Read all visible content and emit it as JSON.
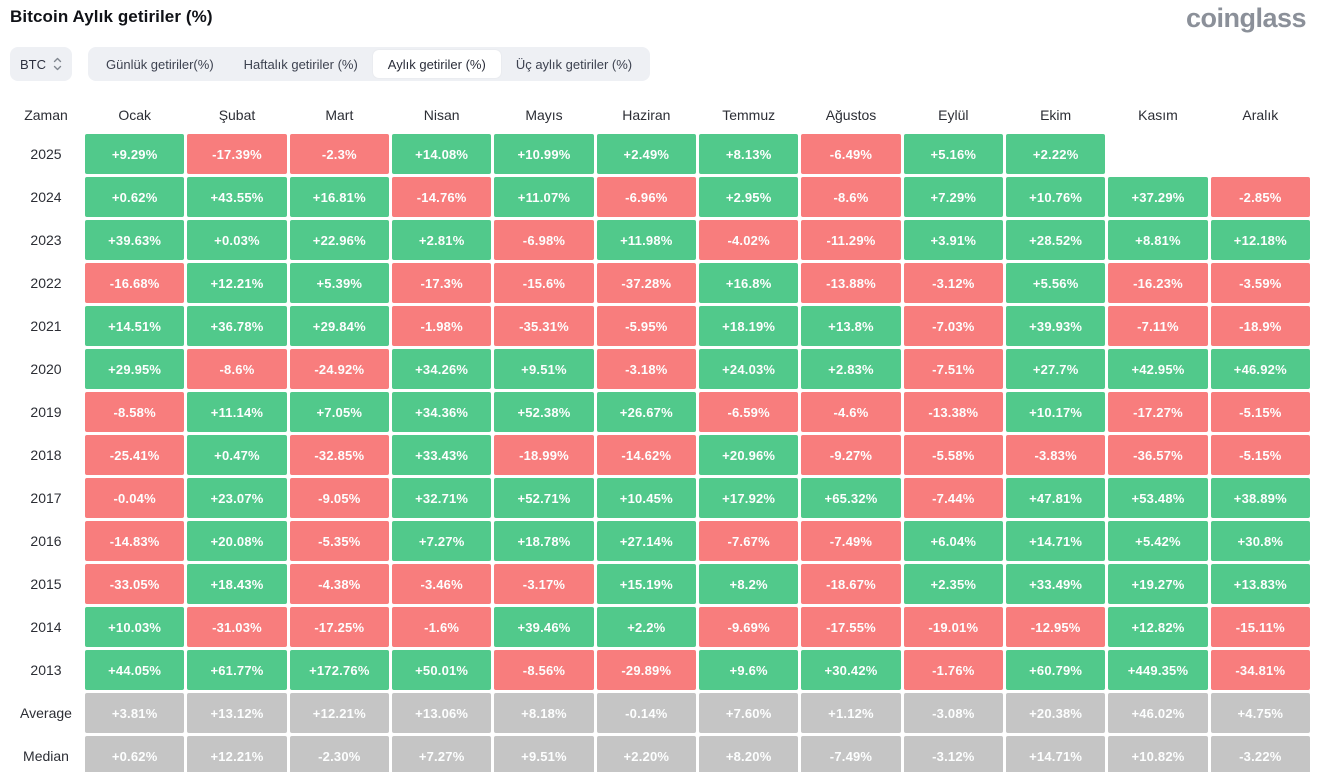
{
  "page": {
    "title": "Bitcoin Aylık getiriler (%)",
    "logo": "coinglass"
  },
  "controls": {
    "symbol": "BTC",
    "tabs": [
      {
        "label": "Günlük getiriler(%)",
        "active": false
      },
      {
        "label": "Haftalık getiriler (%)",
        "active": false
      },
      {
        "label": "Aylık getiriler (%)",
        "active": true
      },
      {
        "label": "Üç aylık getiriler (%)",
        "active": false
      }
    ]
  },
  "colors": {
    "positive": "#51c98b",
    "negative": "#f87d7d",
    "neutral": "#c5c5c5",
    "control_bg": "#eef0f4",
    "logo": "#8b9099",
    "text": "#2c2e35"
  },
  "chart_data": {
    "type": "heatmap",
    "title": "Bitcoin Aylık getiriler (%)",
    "unit": "%",
    "columns": [
      "Zaman",
      "Ocak",
      "Şubat",
      "Mart",
      "Nisan",
      "Mayıs",
      "Haziran",
      "Temmuz",
      "Ağustos",
      "Eylül",
      "Ekim",
      "Kasım",
      "Aralık"
    ],
    "rows": [
      {
        "label": "2025",
        "type": "year",
        "values": [
          "+9.29%",
          "-17.39%",
          "-2.3%",
          "+14.08%",
          "+10.99%",
          "+2.49%",
          "+8.13%",
          "-6.49%",
          "+5.16%",
          "+2.22%",
          null,
          null
        ]
      },
      {
        "label": "2024",
        "type": "year",
        "values": [
          "+0.62%",
          "+43.55%",
          "+16.81%",
          "-14.76%",
          "+11.07%",
          "-6.96%",
          "+2.95%",
          "-8.6%",
          "+7.29%",
          "+10.76%",
          "+37.29%",
          "-2.85%"
        ]
      },
      {
        "label": "2023",
        "type": "year",
        "values": [
          "+39.63%",
          "+0.03%",
          "+22.96%",
          "+2.81%",
          "-6.98%",
          "+11.98%",
          "-4.02%",
          "-11.29%",
          "+3.91%",
          "+28.52%",
          "+8.81%",
          "+12.18%"
        ]
      },
      {
        "label": "2022",
        "type": "year",
        "values": [
          "-16.68%",
          "+12.21%",
          "+5.39%",
          "-17.3%",
          "-15.6%",
          "-37.28%",
          "+16.8%",
          "-13.88%",
          "-3.12%",
          "+5.56%",
          "-16.23%",
          "-3.59%"
        ]
      },
      {
        "label": "2021",
        "type": "year",
        "values": [
          "+14.51%",
          "+36.78%",
          "+29.84%",
          "-1.98%",
          "-35.31%",
          "-5.95%",
          "+18.19%",
          "+13.8%",
          "-7.03%",
          "+39.93%",
          "-7.11%",
          "-18.9%"
        ]
      },
      {
        "label": "2020",
        "type": "year",
        "values": [
          "+29.95%",
          "-8.6%",
          "-24.92%",
          "+34.26%",
          "+9.51%",
          "-3.18%",
          "+24.03%",
          "+2.83%",
          "-7.51%",
          "+27.7%",
          "+42.95%",
          "+46.92%"
        ]
      },
      {
        "label": "2019",
        "type": "year",
        "values": [
          "-8.58%",
          "+11.14%",
          "+7.05%",
          "+34.36%",
          "+52.38%",
          "+26.67%",
          "-6.59%",
          "-4.6%",
          "-13.38%",
          "+10.17%",
          "-17.27%",
          "-5.15%"
        ]
      },
      {
        "label": "2018",
        "type": "year",
        "values": [
          "-25.41%",
          "+0.47%",
          "-32.85%",
          "+33.43%",
          "-18.99%",
          "-14.62%",
          "+20.96%",
          "-9.27%",
          "-5.58%",
          "-3.83%",
          "-36.57%",
          "-5.15%"
        ]
      },
      {
        "label": "2017",
        "type": "year",
        "values": [
          "-0.04%",
          "+23.07%",
          "-9.05%",
          "+32.71%",
          "+52.71%",
          "+10.45%",
          "+17.92%",
          "+65.32%",
          "-7.44%",
          "+47.81%",
          "+53.48%",
          "+38.89%"
        ]
      },
      {
        "label": "2016",
        "type": "year",
        "values": [
          "-14.83%",
          "+20.08%",
          "-5.35%",
          "+7.27%",
          "+18.78%",
          "+27.14%",
          "-7.67%",
          "-7.49%",
          "+6.04%",
          "+14.71%",
          "+5.42%",
          "+30.8%"
        ]
      },
      {
        "label": "2015",
        "type": "year",
        "values": [
          "-33.05%",
          "+18.43%",
          "-4.38%",
          "-3.46%",
          "-3.17%",
          "+15.19%",
          "+8.2%",
          "-18.67%",
          "+2.35%",
          "+33.49%",
          "+19.27%",
          "+13.83%"
        ]
      },
      {
        "label": "2014",
        "type": "year",
        "values": [
          "+10.03%",
          "-31.03%",
          "-17.25%",
          "-1.6%",
          "+39.46%",
          "+2.2%",
          "-9.69%",
          "-17.55%",
          "-19.01%",
          "-12.95%",
          "+12.82%",
          "-15.11%"
        ]
      },
      {
        "label": "2013",
        "type": "year",
        "values": [
          "+44.05%",
          "+61.77%",
          "+172.76%",
          "+50.01%",
          "-8.56%",
          "-29.89%",
          "+9.6%",
          "+30.42%",
          "-1.76%",
          "+60.79%",
          "+449.35%",
          "-34.81%"
        ]
      },
      {
        "label": "Average",
        "type": "summary",
        "values": [
          "+3.81%",
          "+13.12%",
          "+12.21%",
          "+13.06%",
          "+8.18%",
          "-0.14%",
          "+7.60%",
          "+1.12%",
          "-3.08%",
          "+20.38%",
          "+46.02%",
          "+4.75%"
        ]
      },
      {
        "label": "Median",
        "type": "summary",
        "values": [
          "+0.62%",
          "+12.21%",
          "-2.30%",
          "+7.27%",
          "+9.51%",
          "+2.20%",
          "+8.20%",
          "-7.49%",
          "-3.12%",
          "+14.71%",
          "+10.82%",
          "-3.22%"
        ]
      }
    ]
  }
}
